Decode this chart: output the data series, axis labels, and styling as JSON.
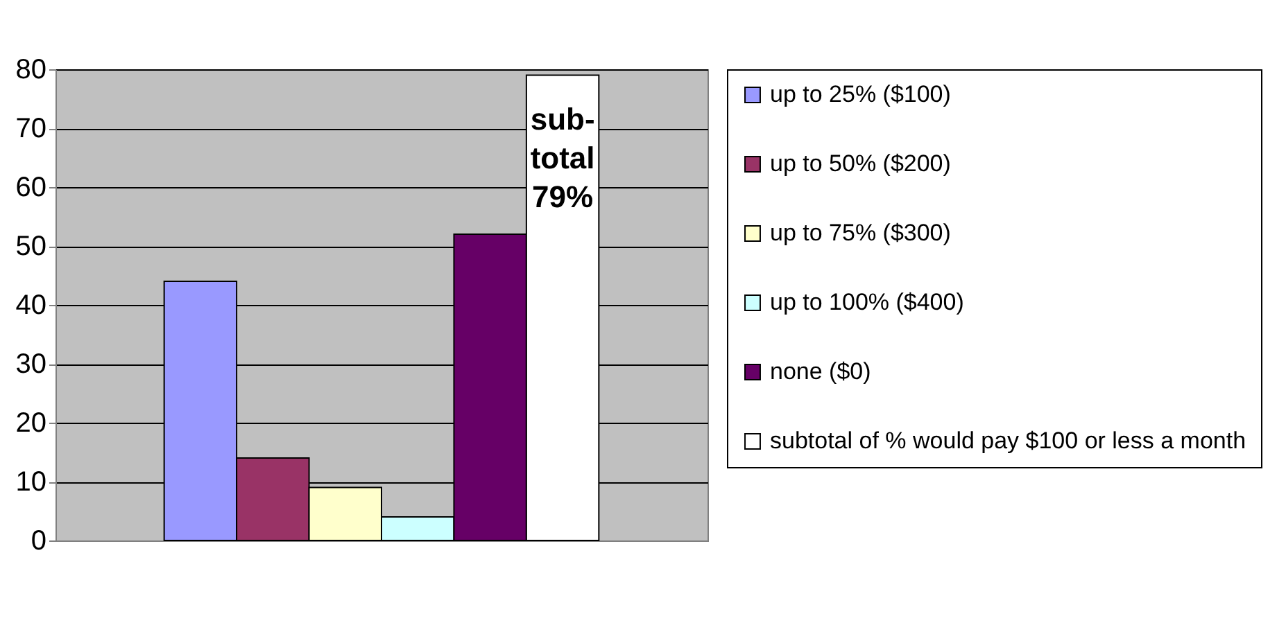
{
  "chart_data": {
    "type": "bar",
    "categories": [
      null
    ],
    "series": [
      {
        "name": "up to 25% ($100)",
        "color": "#9999ff",
        "values": [
          44
        ]
      },
      {
        "name": "up to 50% ($200)",
        "color": "#993366",
        "values": [
          14
        ]
      },
      {
        "name": "up to 75% ($300)",
        "color": "#ffffcc",
        "values": [
          9
        ]
      },
      {
        "name": "up to 100% ($400)",
        "color": "#ccffff",
        "values": [
          4
        ]
      },
      {
        "name": "none ($0)",
        "color": "#660066",
        "values": [
          52
        ]
      },
      {
        "name": "subtotal of % would pay $100 or less a month",
        "color": "#ffffff",
        "values": [
          79
        ]
      }
    ],
    "annotations": [
      "sub-\ntotal\n79%"
    ],
    "ylim": [
      0,
      80
    ],
    "yticks": [
      0,
      10,
      20,
      30,
      40,
      50,
      60,
      70,
      80
    ],
    "grid": "y",
    "legend": "right"
  }
}
